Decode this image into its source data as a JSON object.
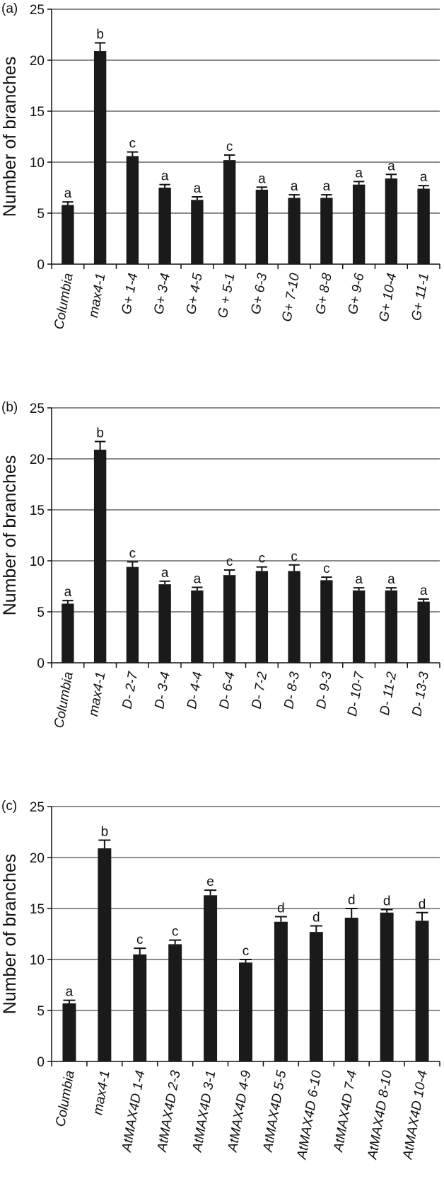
{
  "chart_data": [
    {
      "type": "bar",
      "panel_label": "(a)",
      "ylabel": "Number of branches",
      "ylim": [
        0,
        25
      ],
      "yticks": [
        "0",
        "5",
        "10",
        "15",
        "20",
        "25"
      ],
      "grid": true,
      "categories": [
        "Columbia",
        "max4-1",
        "G+ 1-4",
        "G+ 3-4",
        "G+ 4-5",
        "G + 5-1",
        "G+ 6-3",
        "G+ 7-10",
        "G+ 8-8",
        "G+ 9-6",
        "G+ 10-4",
        "G+ 11-1"
      ],
      "values": [
        5.8,
        20.9,
        10.6,
        7.5,
        6.3,
        10.2,
        7.3,
        6.5,
        6.5,
        7.8,
        8.4,
        7.4
      ],
      "errors": [
        0.3,
        0.8,
        0.4,
        0.3,
        0.3,
        0.5,
        0.25,
        0.3,
        0.3,
        0.3,
        0.4,
        0.3
      ],
      "labels": [
        "a",
        "b",
        "c",
        "a",
        "a",
        "c",
        "a",
        "a",
        "a",
        "a",
        "a",
        "a"
      ],
      "bar_color": "#1a1a1a"
    },
    {
      "type": "bar",
      "panel_label": "(b)",
      "ylabel": "Number of branches",
      "ylim": [
        0,
        25
      ],
      "yticks": [
        "0",
        "5",
        "10",
        "15",
        "20",
        "25"
      ],
      "grid": true,
      "categories": [
        "Columbia",
        "max4-1",
        "D- 2-7",
        "D- 3-4",
        "D- 4-4",
        "D- 6-4",
        "D- 7-2",
        "D- 8-3",
        "D- 9-3",
        "D- 10-7",
        "D- 11-2",
        "D- 13-3"
      ],
      "values": [
        5.8,
        20.9,
        9.4,
        7.7,
        7.1,
        8.6,
        9.0,
        9.0,
        8.1,
        7.1,
        7.1,
        6.0
      ],
      "errors": [
        0.3,
        0.8,
        0.5,
        0.3,
        0.3,
        0.5,
        0.4,
        0.6,
        0.3,
        0.25,
        0.25,
        0.25
      ],
      "labels": [
        "a",
        "b",
        "c",
        "a",
        "a",
        "c",
        "c",
        "c",
        "c",
        "a",
        "a",
        "a"
      ],
      "bar_color": "#1a1a1a"
    },
    {
      "type": "bar",
      "panel_label": "(c)",
      "ylabel": "Number of branches",
      "ylim": [
        0,
        25
      ],
      "yticks": [
        "0",
        "5",
        "10",
        "15",
        "20",
        "25"
      ],
      "grid": true,
      "categories": [
        "Columbia",
        "max4-1",
        "AtMAX4D 1-4",
        "AtMAX4D 2-3",
        "AtMAX4D 3-1",
        "AtMAX4D 4-9",
        "AtMAX4D 5-5",
        "AtMAX4D 6-10",
        "AtMAX4D 7-4",
        "AtMAX4D 8-10",
        "AtMAX4D 10-4"
      ],
      "values": [
        5.7,
        20.9,
        10.5,
        11.5,
        16.3,
        9.7,
        13.7,
        12.7,
        14.1,
        14.6,
        13.8
      ],
      "errors": [
        0.3,
        0.8,
        0.6,
        0.4,
        0.5,
        0.3,
        0.5,
        0.6,
        0.9,
        0.3,
        0.8
      ],
      "labels": [
        "a",
        "b",
        "c",
        "c",
        "e",
        "c",
        "d",
        "d",
        "d",
        "d",
        "d"
      ],
      "bar_color": "#1a1a1a"
    }
  ]
}
